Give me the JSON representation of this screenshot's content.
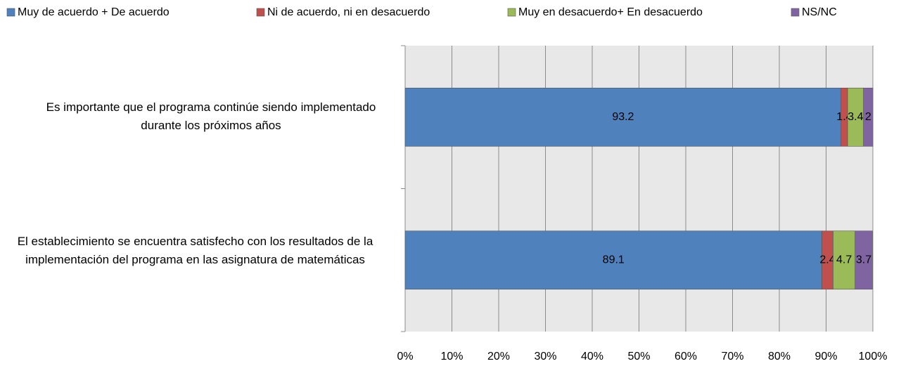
{
  "chart_data": {
    "type": "stacked-barh",
    "categories": [
      "Es importante que el programa continúe siendo implementado durante los próximos años",
      "El establecimiento se encuentra satisfecho con los resultados de la implementación del programa en las asignatura de matemáticas"
    ],
    "series": [
      {
        "name": "Muy de acuerdo + De acuerdo",
        "color": "#4f81bd",
        "values": [
          93.2,
          89.1
        ]
      },
      {
        "name": "Ni de acuerdo, ni en desacuerdo",
        "color": "#c0504d",
        "values": [
          1.4,
          2.4
        ]
      },
      {
        "name": "Muy en desacuerdo+ En desacuerdo",
        "color": "#9bbb59",
        "values": [
          3.4,
          4.7
        ]
      },
      {
        "name": "NS/NC",
        "color": "#8064a2",
        "values": [
          2,
          3.7
        ]
      }
    ],
    "xlim": [
      0,
      100
    ],
    "xticks": [
      {
        "value": 0,
        "label": "0%"
      },
      {
        "value": 10,
        "label": "10%"
      },
      {
        "value": 20,
        "label": "20%"
      },
      {
        "value": 30,
        "label": "30%"
      },
      {
        "value": 40,
        "label": "40%"
      },
      {
        "value": 50,
        "label": "50%"
      },
      {
        "value": 60,
        "label": "60%"
      },
      {
        "value": 70,
        "label": "70%"
      },
      {
        "value": 80,
        "label": "80%"
      },
      {
        "value": 90,
        "label": "90%"
      },
      {
        "value": 100,
        "label": "100%"
      }
    ],
    "grid": true,
    "legend": "top"
  }
}
